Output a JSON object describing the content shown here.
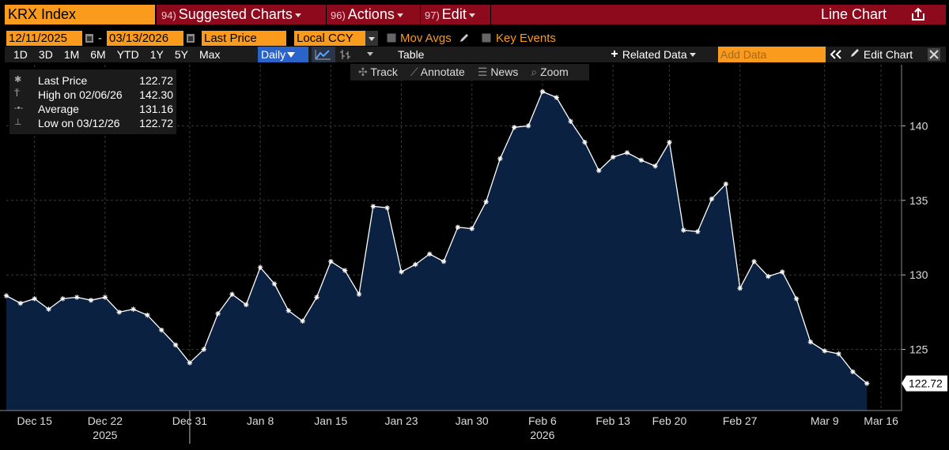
{
  "toolbar": {
    "security": "KRX Index",
    "menus": [
      {
        "number": "94)",
        "label": "Suggested Charts"
      },
      {
        "number": "96)",
        "label": "Actions"
      },
      {
        "number": "97)",
        "label": "Edit"
      }
    ],
    "chart_type": "Line Chart"
  },
  "controls": {
    "start_date": "12/11/2025",
    "date_separator": "-",
    "end_date": "03/13/2026",
    "field": "Last Price",
    "currency": "Local CCY",
    "options": [
      "Mov Avgs",
      "Key Events"
    ],
    "ranges": [
      "1D",
      "3D",
      "1M",
      "6M",
      "YTD",
      "1Y",
      "5Y",
      "Max"
    ],
    "frequency": "Daily",
    "table": "Table",
    "related": "Related Data",
    "add_data": "Add Data",
    "edit_chart": "Edit Chart"
  },
  "chart_tools": [
    "Track",
    "Annotate",
    "News",
    "Zoom"
  ],
  "legend": [
    {
      "label": "Last Price",
      "value": "122.72"
    },
    {
      "label": "High on 02/06/26",
      "value": "142.30"
    },
    {
      "label": "Average",
      "value": "131.16"
    },
    {
      "label": "Low on 03/12/26",
      "value": "122.72"
    }
  ],
  "chart_data": {
    "type": "line",
    "categories": [
      null,
      null,
      "Dec 15",
      null,
      null,
      null,
      null,
      "Dec 22",
      null,
      null,
      null,
      null,
      null,
      "Dec 31",
      null,
      null,
      null,
      null,
      "Jan 8",
      null,
      null,
      null,
      null,
      "Jan 15",
      null,
      null,
      null,
      null,
      "Jan 23",
      null,
      null,
      null,
      null,
      "Jan 30",
      null,
      null,
      null,
      null,
      "Feb 6",
      null,
      null,
      null,
      null,
      "Feb 13",
      null,
      null,
      null,
      "Feb 20",
      null,
      null,
      null,
      null,
      "Feb 27",
      null,
      null,
      null,
      null,
      null,
      "Mar 9",
      null,
      null,
      null,
      "Mar 16"
    ],
    "years": [
      "2025",
      "2026"
    ],
    "series": [
      {
        "name": "Last Price",
        "color": "#ffffff",
        "fill": "#0b2141",
        "values": [
          128.6,
          128.1,
          128.4,
          127.7,
          128.4,
          128.5,
          128.3,
          128.5,
          127.5,
          127.7,
          127.3,
          126.3,
          125.3,
          124.1,
          125.0,
          127.4,
          128.7,
          128.0,
          130.5,
          129.4,
          127.6,
          126.9,
          128.5,
          130.9,
          130.3,
          128.7,
          134.6,
          134.5,
          130.2,
          130.7,
          131.4,
          130.9,
          133.2,
          133.1,
          134.9,
          137.8,
          139.9,
          140.0,
          142.3,
          141.9,
          140.3,
          138.9,
          137.0,
          137.9,
          138.2,
          137.7,
          137.3,
          138.9,
          133.0,
          132.9,
          135.1,
          136.1,
          129.1,
          130.9,
          129.9,
          130.2,
          128.4,
          125.5,
          124.9,
          124.7,
          123.5,
          122.72,
          null
        ]
      }
    ],
    "ylim": [
      120.9,
      144.1
    ],
    "yticks": [
      125,
      130,
      135,
      140
    ],
    "grid": true
  }
}
